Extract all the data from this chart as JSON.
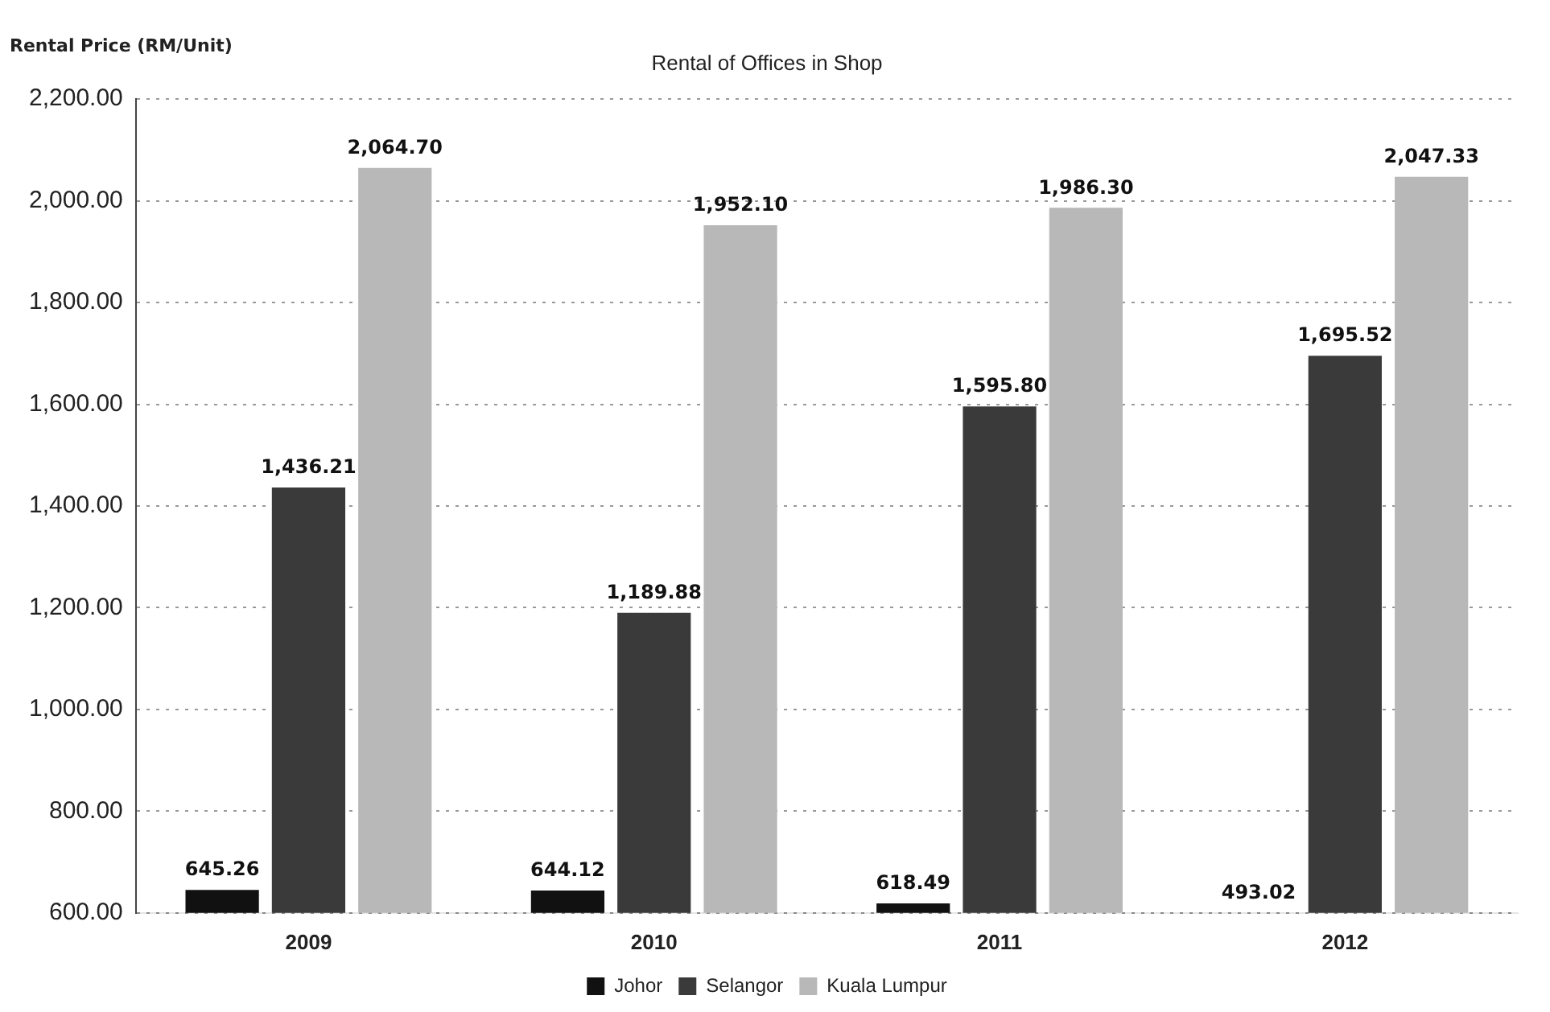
{
  "chart_data": {
    "type": "bar",
    "title": "Rental of Offices in Shop",
    "ylabel": "Rental Price (RM/Unit)",
    "categories": [
      "2009",
      "2010",
      "2011",
      "2012"
    ],
    "series": [
      {
        "name": "Johor",
        "color": "#111111",
        "values": [
          645.26,
          644.12,
          618.49,
          null
        ],
        "value_labels": [
          "645.26",
          "644.12",
          "618.49",
          "493.02"
        ]
      },
      {
        "name": "Selangor",
        "color": "#3a3a3a",
        "values": [
          1436.21,
          1189.88,
          1595.8,
          1695.52
        ],
        "value_labels": [
          "1,436.21",
          "1,189.88",
          "1,595.80",
          "1,695.52"
        ]
      },
      {
        "name": "Kuala Lumpur",
        "color": "#b8b8b8",
        "values": [
          2064.7,
          1952.1,
          1986.3,
          2047.33
        ],
        "value_labels": [
          "2,064.70",
          "1,952.10",
          "1,986.30",
          "2,047.33"
        ]
      }
    ],
    "ylim": [
      600,
      2200
    ],
    "yticks": [
      {
        "value": 600,
        "label": "600.00"
      },
      {
        "value": 800,
        "label": "800.00"
      },
      {
        "value": 1000,
        "label": "1,000.00"
      },
      {
        "value": 1200,
        "label": "1,200.00"
      },
      {
        "value": 1400,
        "label": "1,400.00"
      },
      {
        "value": 1600,
        "label": "1,600.00"
      },
      {
        "value": 1800,
        "label": "1,800.00"
      },
      {
        "value": 2000,
        "label": "2,000.00"
      },
      {
        "value": 2200,
        "label": "2,200.00"
      }
    ],
    "grid": "y",
    "legend": "bottom"
  }
}
